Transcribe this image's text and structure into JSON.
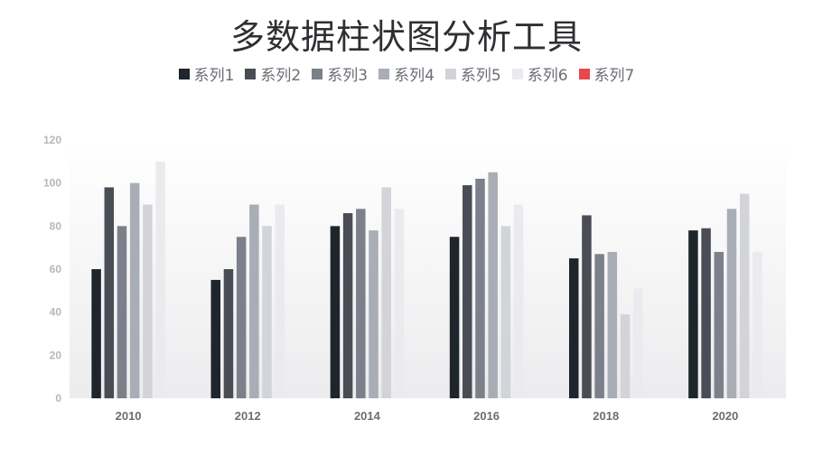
{
  "chart_data": {
    "type": "bar",
    "title": "多数据柱状图分析工具",
    "categories": [
      "2010",
      "2012",
      "2014",
      "2016",
      "2018",
      "2020"
    ],
    "ylim": [
      0,
      120
    ],
    "yticks": [
      0,
      20,
      40,
      60,
      80,
      100,
      120
    ],
    "grid": false,
    "legend_position": "top",
    "series": [
      {
        "name": "系列1",
        "color": "#1f252d",
        "values": [
          60,
          55,
          80,
          75,
          65,
          78
        ]
      },
      {
        "name": "系列2",
        "color": "#4a4d55",
        "values": [
          98,
          60,
          86,
          99,
          85,
          79
        ]
      },
      {
        "name": "系列3",
        "color": "#7c808b",
        "values": [
          80,
          75,
          88,
          102,
          67,
          68
        ]
      },
      {
        "name": "系列4",
        "color": "#a9adb5",
        "values": [
          100,
          90,
          78,
          105,
          68,
          88
        ]
      },
      {
        "name": "系列5",
        "color": "#d2d4d9",
        "values": [
          90,
          80,
          98,
          80,
          39,
          95
        ]
      },
      {
        "name": "系列6",
        "color": "#ebebef",
        "values": [
          110,
          90,
          88,
          90,
          51,
          68
        ]
      },
      {
        "name": "系列7",
        "color": "#e8474b",
        "values": [
          0,
          0,
          0,
          0,
          0,
          0
        ]
      }
    ]
  }
}
